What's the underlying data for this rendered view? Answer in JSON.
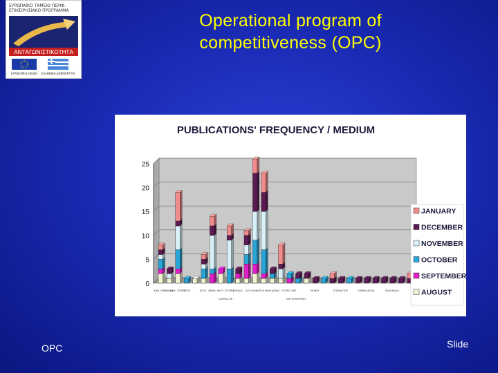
{
  "slide": {
    "title_line1": "Operational program of",
    "title_line2": "competitiveness (OPC)",
    "footer_left": "OPC",
    "footer_right": "Slide"
  },
  "logo": {
    "line1": "ΕΥΡΩΠΑΪΚΟ ΤΑΜΕΙΟ ΠΕΡΙΦ.",
    "line2": "ΕΠΙΧΕΙΡΗΣΙΑΚΟ ΠΡΟΓΡΑΜΜΑ",
    "banner": "ΑΝΤΑΓΩΝΙΣΤΙΚΟΤΗΤΑ",
    "eu_caption": "ΕΥΡΩΠΑΪΚΗ ΕΝΩΣΗ",
    "gr_caption": "ΕΛΛΗΝΙΚΗ ΔΗΜΟΚΡΑΤΙΑ"
  },
  "colors": {
    "January": "#f08c8c",
    "December": "#5c1a52",
    "November": "#d8f0f8",
    "October": "#29a4d6",
    "September": "#e21ec8",
    "August": "#f2f2d4"
  },
  "chart_data": {
    "type": "bar",
    "stacked": true,
    "three_d": true,
    "title": "PUBLICATIONS' FREQUENCY / MEDIUM",
    "ylim": [
      0,
      25
    ],
    "yticks": [
      0,
      5,
      10,
      15,
      20,
      25
    ],
    "grid": true,
    "legend_position": "right",
    "categories": [
      "ΚΑΘ. ΕΠΙΚ.",
      "ΕΘΝΟΣ",
      "ΚΑΘ. ΤΥΠΟΣ",
      "ΤΥΠΟΣ",
      "",
      "ΑΠΟΓ.",
      "ΒΗΜΑ",
      "ΝΑΥΤ.",
      "ΕΞΠΡΕΣ",
      "ΚΕΡΔΟΣ",
      "",
      "ΑΓΓΕΛΙΟΦΟΡΟΣ",
      "",
      "ΜΑΚΕΔΟΝΙΑ",
      "",
      "ΕΞΠΡΕΣ ΕΝΤ.",
      "",
      "",
      "ΜΟΝΕΥ",
      "",
      "",
      "ΕΠΕΝΔΥΤΗΣ",
      "",
      "",
      "ΑΘΗΝΑ ΔΕΣΜ.",
      "",
      "",
      "ΕΒΔΟΜΑΔΑ",
      "",
      ""
    ],
    "series": [
      {
        "name": "AUGUST",
        "values": [
          2,
          1,
          2,
          0,
          1,
          1,
          0,
          2,
          0,
          1,
          1,
          2,
          1,
          1,
          1,
          0,
          0,
          1,
          0,
          0,
          0,
          0,
          0,
          0,
          0,
          0,
          0,
          0,
          0,
          0
        ]
      },
      {
        "name": "SEPTEMBER",
        "values": [
          1,
          0,
          1,
          0,
          0,
          0,
          2,
          1,
          0,
          1,
          3,
          2,
          1,
          0,
          0,
          1,
          0,
          0,
          0,
          0,
          0,
          0,
          0,
          0,
          0,
          0,
          0,
          0,
          0,
          0
        ]
      },
      {
        "name": "OCTOBER",
        "values": [
          2,
          0,
          4,
          1,
          0,
          2,
          1,
          0,
          3,
          0,
          2,
          5,
          5,
          1,
          0,
          1,
          1,
          0,
          0,
          1,
          0,
          0,
          1,
          0,
          0,
          0,
          0,
          0,
          0,
          0
        ]
      },
      {
        "name": "NOVEMBER",
        "values": [
          1,
          1,
          5,
          0,
          0,
          1,
          7,
          0,
          6,
          0,
          2,
          6,
          8,
          0,
          2,
          0,
          0,
          0,
          0,
          0,
          0,
          0,
          0,
          0,
          0,
          0,
          0,
          0,
          0,
          0
        ]
      },
      {
        "name": "DECEMBER",
        "values": [
          1,
          1,
          1,
          0,
          0,
          1,
          2,
          0,
          1,
          1,
          2,
          8,
          4,
          1,
          1,
          0,
          1,
          1,
          1,
          0,
          1,
          1,
          0,
          1,
          1,
          1,
          1,
          1,
          1,
          1
        ]
      },
      {
        "name": "JANUARY",
        "values": [
          1,
          0,
          6,
          0,
          0,
          1,
          2,
          0,
          2,
          0,
          1,
          3,
          4,
          0,
          4,
          0,
          0,
          0,
          0,
          0,
          1,
          0,
          0,
          0,
          0,
          0,
          0,
          0,
          0,
          1
        ]
      }
    ],
    "x_group_labels": [
      "CAPITAL.GR",
      "ΝΑΥΤΕΜΠΟΡΙΚΗ"
    ]
  }
}
